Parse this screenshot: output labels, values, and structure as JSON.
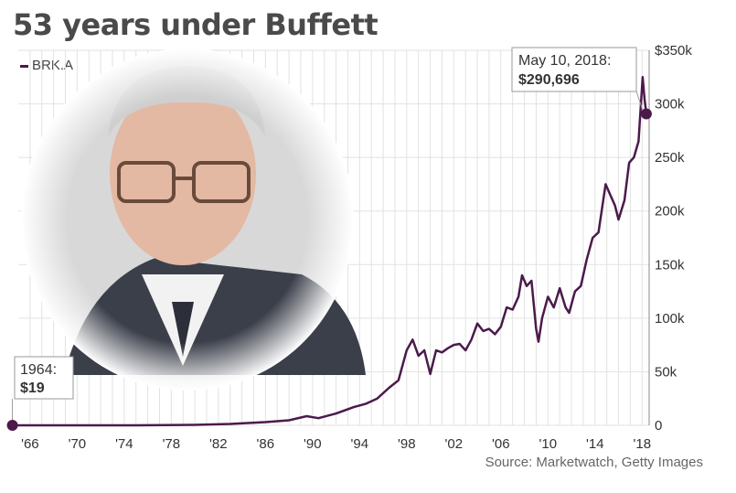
{
  "title": "53 years under Buffett",
  "source": "Source: Marketwatch, Getty Images",
  "colors": {
    "series": "#4b1a4b",
    "grid": "#e2e2e2",
    "text": "#4a4a4a",
    "photo_bg": "#dcdcdc"
  },
  "photo": {
    "icon": "portrait-photo"
  },
  "chart_data": {
    "type": "line",
    "title": "53 years under Buffett",
    "xlabel": "",
    "ylabel": "",
    "xlim": [
      1965,
      2018.6
    ],
    "ylim": [
      0,
      350000
    ],
    "grid": true,
    "legend": "top-left",
    "x_ticks": [
      1966,
      1970,
      1974,
      1978,
      1982,
      1986,
      1990,
      1994,
      1998,
      2002,
      2006,
      2010,
      2014,
      2018
    ],
    "x_tick_labels": [
      "'66",
      "'70",
      "'74",
      "'78",
      "'82",
      "'86",
      "'90",
      "'94",
      "'98",
      "'02",
      "'06",
      "'10",
      "'14",
      "'18"
    ],
    "y_ticks": [
      0,
      50000,
      100000,
      150000,
      200000,
      250000,
      300000,
      350000
    ],
    "y_tick_labels": [
      "0",
      "50k",
      "100k",
      "150k",
      "200k",
      "250k",
      "300k",
      "$350k"
    ],
    "series": [
      {
        "name": "BRK.A",
        "points": [
          [
            1964.5,
            19
          ],
          [
            1970,
            40
          ],
          [
            1975,
            40
          ],
          [
            1980,
            400
          ],
          [
            1983,
            1300
          ],
          [
            1986,
            3000
          ],
          [
            1988,
            4700
          ],
          [
            1989.5,
            8500
          ],
          [
            1990.5,
            6700
          ],
          [
            1992,
            11000
          ],
          [
            1993.5,
            17000
          ],
          [
            1994.5,
            20000
          ],
          [
            1995.5,
            25000
          ],
          [
            1996.5,
            35000
          ],
          [
            1997.3,
            42000
          ],
          [
            1998.0,
            70000
          ],
          [
            1998.5,
            80000
          ],
          [
            1999.0,
            65000
          ],
          [
            1999.5,
            70000
          ],
          [
            2000.0,
            48000
          ],
          [
            2000.5,
            70000
          ],
          [
            2001.0,
            68000
          ],
          [
            2001.5,
            72000
          ],
          [
            2002.0,
            75000
          ],
          [
            2002.5,
            76000
          ],
          [
            2003.0,
            70000
          ],
          [
            2003.5,
            80000
          ],
          [
            2004.0,
            95000
          ],
          [
            2004.5,
            88000
          ],
          [
            2005.0,
            90000
          ],
          [
            2005.5,
            85000
          ],
          [
            2006.0,
            92000
          ],
          [
            2006.5,
            110000
          ],
          [
            2007.0,
            108000
          ],
          [
            2007.5,
            120000
          ],
          [
            2007.8,
            140000
          ],
          [
            2008.2,
            130000
          ],
          [
            2008.6,
            135000
          ],
          [
            2009.0,
            90000
          ],
          [
            2009.2,
            78000
          ],
          [
            2009.5,
            100000
          ],
          [
            2010.0,
            120000
          ],
          [
            2010.5,
            110000
          ],
          [
            2011.0,
            128000
          ],
          [
            2011.5,
            110000
          ],
          [
            2011.8,
            105000
          ],
          [
            2012.3,
            125000
          ],
          [
            2012.8,
            130000
          ],
          [
            2013.3,
            155000
          ],
          [
            2013.8,
            175000
          ],
          [
            2014.3,
            180000
          ],
          [
            2014.9,
            225000
          ],
          [
            2015.3,
            215000
          ],
          [
            2015.7,
            205000
          ],
          [
            2016.0,
            192000
          ],
          [
            2016.5,
            210000
          ],
          [
            2016.9,
            245000
          ],
          [
            2017.3,
            250000
          ],
          [
            2017.7,
            265000
          ],
          [
            2018.05,
            325000
          ],
          [
            2018.2,
            305000
          ],
          [
            2018.36,
            290696
          ]
        ]
      }
    ],
    "annotations": [
      {
        "label": "1964:",
        "value": "$19",
        "x": 1964.5,
        "y": 19
      },
      {
        "label": "May 10, 2018:",
        "value": "$290,696",
        "x": 2018.36,
        "y": 290696
      }
    ]
  }
}
